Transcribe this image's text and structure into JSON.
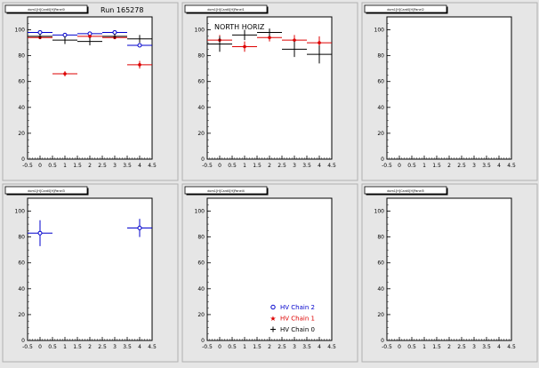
{
  "canvas": {
    "background": "#e6e6e6",
    "pad_border": "#b0b0b0"
  },
  "run_label": "Run 165278",
  "colors": {
    "chain2": "#0000cc",
    "chain1": "#dd0000",
    "chain0": "#000000"
  },
  "legend": {
    "entries": [
      {
        "label": "HV Chain 2",
        "series": "chain2",
        "marker": "open-circle"
      },
      {
        "label": "HV Chain 1",
        "series": "chain1",
        "marker": "star"
      },
      {
        "label": "HV Chain 0",
        "series": "chain0",
        "marker": "cross"
      }
    ]
  },
  "chart_data": [
    {
      "type": "scatter",
      "title": "dom1[H]Card0[H]Panel0",
      "xlim": [
        -0.5,
        4.5
      ],
      "ylim": [
        0,
        110
      ],
      "x_ticks": [
        -0.5,
        0,
        0.5,
        1,
        1.5,
        2,
        2.5,
        3,
        3.5,
        4,
        4.5
      ],
      "y_ticks": [
        0,
        20,
        40,
        60,
        80,
        100
      ],
      "annotation": "",
      "series": [
        {
          "key": "chain2",
          "points": [
            {
              "x": 0,
              "y": 98,
              "xerr": 0.5,
              "yerr": 1
            },
            {
              "x": 1,
              "y": 96,
              "xerr": 0.5,
              "yerr": 1
            },
            {
              "x": 2,
              "y": 97,
              "xerr": 0.5,
              "yerr": 1
            },
            {
              "x": 3,
              "y": 98,
              "xerr": 0.5,
              "yerr": 1
            },
            {
              "x": 4,
              "y": 88,
              "xerr": 0.5,
              "yerr": 1
            }
          ]
        },
        {
          "key": "chain1",
          "points": [
            {
              "x": 0,
              "y": 94,
              "xerr": 0.5,
              "yerr": 1
            },
            {
              "x": 1,
              "y": 66,
              "xerr": 0.5,
              "yerr": 2
            },
            {
              "x": 2,
              "y": 95,
              "xerr": 0.5,
              "yerr": 1
            },
            {
              "x": 3,
              "y": 94,
              "xerr": 0.5,
              "yerr": 1
            },
            {
              "x": 4,
              "y": 73,
              "xerr": 0.5,
              "yerr": 3
            }
          ]
        },
        {
          "key": "chain0",
          "points": [
            {
              "x": 0,
              "y": 95,
              "xerr": 0.5,
              "yerr": 2
            },
            {
              "x": 1,
              "y": 92,
              "xerr": 0.5,
              "yerr": 3
            },
            {
              "x": 2,
              "y": 91,
              "xerr": 0.5,
              "yerr": 3
            },
            {
              "x": 3,
              "y": 95,
              "xerr": 0.5,
              "yerr": 2
            },
            {
              "x": 4,
              "y": 93,
              "xerr": 0.5,
              "yerr": 3
            }
          ]
        }
      ]
    },
    {
      "type": "scatter",
      "title": "dom1[H]Card0[H]Panel1",
      "xlim": [
        -0.5,
        4.5
      ],
      "ylim": [
        0,
        110
      ],
      "x_ticks": [
        -0.5,
        0,
        0.5,
        1,
        1.5,
        2,
        2.5,
        3,
        3.5,
        4,
        4.5
      ],
      "y_ticks": [
        0,
        20,
        40,
        60,
        80,
        100
      ],
      "annotation": "NORTH HORIZ",
      "series": [
        {
          "key": "chain1",
          "points": [
            {
              "x": 0,
              "y": 92,
              "xerr": 0.5,
              "yerr": 4
            },
            {
              "x": 1,
              "y": 87,
              "xerr": 0.5,
              "yerr": 4
            },
            {
              "x": 2,
              "y": 94,
              "xerr": 0.5,
              "yerr": 3
            },
            {
              "x": 3,
              "y": 92,
              "xerr": 0.5,
              "yerr": 4
            },
            {
              "x": 4,
              "y": 90,
              "xerr": 0.5,
              "yerr": 5
            }
          ]
        },
        {
          "key": "chain0",
          "points": [
            {
              "x": 0,
              "y": 89,
              "xerr": 0.5,
              "yerr": 6
            },
            {
              "x": 1,
              "y": 96,
              "xerr": 0.5,
              "yerr": 4
            },
            {
              "x": 2,
              "y": 98,
              "xerr": 0.5,
              "yerr": 3
            },
            {
              "x": 3,
              "y": 85,
              "xerr": 0.5,
              "yerr": 6
            },
            {
              "x": 4,
              "y": 81,
              "xerr": 0.5,
              "yerr": 7
            }
          ]
        }
      ]
    },
    {
      "type": "scatter",
      "title": "dom1[H]Card0[H]Panel2",
      "xlim": [
        -0.5,
        4.5
      ],
      "ylim": [
        0,
        110
      ],
      "x_ticks": [
        -0.5,
        0,
        0.5,
        1,
        1.5,
        2,
        2.5,
        3,
        3.5,
        4,
        4.5
      ],
      "y_ticks": [
        0,
        20,
        40,
        60,
        80,
        100
      ],
      "annotation": "",
      "series": []
    },
    {
      "type": "scatter",
      "title": "dom1[H]Card0[H]Panel3",
      "xlim": [
        -0.5,
        4.5
      ],
      "ylim": [
        0,
        110
      ],
      "x_ticks": [
        -0.5,
        0,
        0.5,
        1,
        1.5,
        2,
        2.5,
        3,
        3.5,
        4,
        4.5
      ],
      "y_ticks": [
        0,
        20,
        40,
        60,
        80,
        100
      ],
      "annotation": "",
      "series": [
        {
          "key": "chain2",
          "points": [
            {
              "x": 0,
              "y": 83,
              "xerr": 0.5,
              "yerr": 10
            },
            {
              "x": 4,
              "y": 87,
              "xerr": 0.5,
              "yerr": 7
            }
          ]
        }
      ]
    },
    {
      "type": "scatter",
      "title": "dom1[H]Card0[H]Panel4",
      "xlim": [
        -0.5,
        4.5
      ],
      "ylim": [
        0,
        110
      ],
      "x_ticks": [
        -0.5,
        0,
        0.5,
        1,
        1.5,
        2,
        2.5,
        3,
        3.5,
        4,
        4.5
      ],
      "y_ticks": [
        0,
        20,
        40,
        60,
        80,
        100
      ],
      "annotation": "",
      "series": []
    },
    {
      "type": "scatter",
      "title": "dom1[H]Card0[H]Panel5",
      "xlim": [
        -0.5,
        4.5
      ],
      "ylim": [
        0,
        110
      ],
      "x_ticks": [
        -0.5,
        0,
        0.5,
        1,
        1.5,
        2,
        2.5,
        3,
        3.5,
        4,
        4.5
      ],
      "y_ticks": [
        0,
        20,
        40,
        60,
        80,
        100
      ],
      "annotation": "",
      "series": []
    }
  ]
}
